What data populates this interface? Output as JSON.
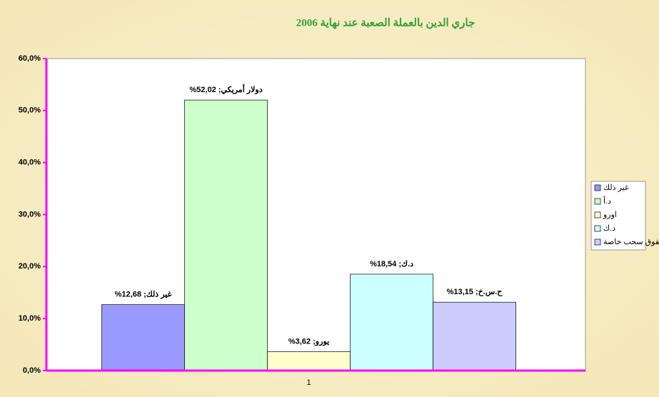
{
  "chart_data": {
    "type": "bar",
    "title": "جاري الدين بالعملة الصعبة عند نهاية 2006",
    "categories": [
      "1"
    ],
    "series": [
      {
        "name": "غير ذلك",
        "color": "#9999ff",
        "values": [
          12.68
        ],
        "value_labels": [
          "غير ذلك; 12,68%"
        ]
      },
      {
        "name": "د.أ",
        "color": "#ccffcc",
        "values": [
          52.02
        ],
        "value_labels": [
          "دولار أمريكي; 52,02%"
        ]
      },
      {
        "name": "اورو",
        "color": "#ffffcc",
        "values": [
          3.62
        ],
        "value_labels": [
          "يورو; 3,62%"
        ]
      },
      {
        "name": "د.ك",
        "color": "#ccffff",
        "values": [
          18.54
        ],
        "value_labels": [
          "د.ك; 18,54%"
        ]
      },
      {
        "name": "حقوق سحب خاصة",
        "color": "#ccccff",
        "values": [
          13.15
        ],
        "value_labels": [
          "ح.س.خ; 13,15%"
        ]
      }
    ],
    "ylim": [
      0,
      60
    ],
    "yticks": [
      {
        "value": 0,
        "label": "0,0%"
      },
      {
        "value": 10,
        "label": "10,0%"
      },
      {
        "value": 20,
        "label": "20,0%"
      },
      {
        "value": 30,
        "label": "30,0%"
      },
      {
        "value": 40,
        "label": "40,0%"
      },
      {
        "value": 50,
        "label": "50,0%"
      },
      {
        "value": 60,
        "label": "60,0%"
      }
    ],
    "grid": false
  }
}
